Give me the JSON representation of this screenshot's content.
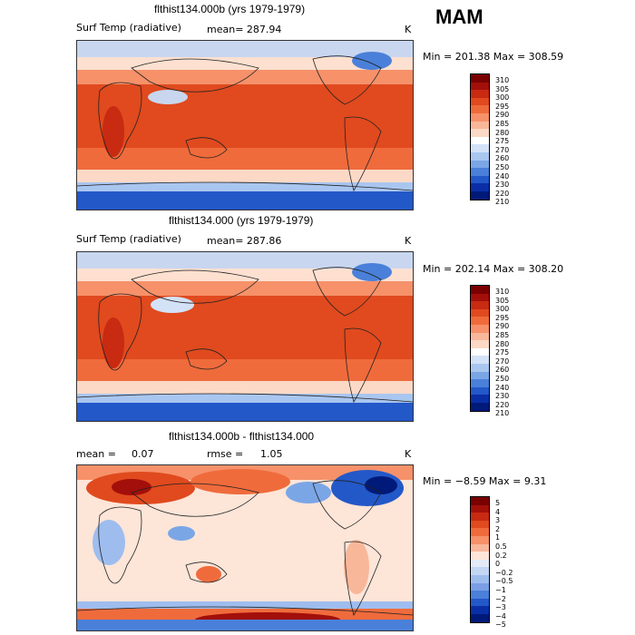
{
  "season": "MAM",
  "panels": [
    {
      "title": "flthist134.000b (yrs 1979-1979)",
      "left_label": "Surf Temp (radiative)",
      "mean_label": "mean= 287.94",
      "units": "K",
      "minmax": "Min = 201.38 Max = 308.59",
      "colorbar": {
        "labels": [
          "310",
          "305",
          "300",
          "295",
          "290",
          "285",
          "280",
          "275",
          "270",
          "260",
          "250",
          "240",
          "230",
          "220",
          "210"
        ],
        "colors": [
          "#7a0000",
          "#a30f0a",
          "#c82a12",
          "#e04a1e",
          "#ef6b3c",
          "#f6916a",
          "#f9b79a",
          "#fcd9c6",
          "#ffffff",
          "#d3e2f7",
          "#a9c6f0",
          "#7ba6e6",
          "#4a80d9",
          "#2358c8",
          "#0a2ea6",
          "#001a7a"
        ]
      }
    },
    {
      "title": "flthist134.000 (yrs 1979-1979)",
      "left_label": "Surf Temp (radiative)",
      "mean_label": "mean= 287.86",
      "units": "K",
      "minmax": "Min = 202.14 Max = 308.20",
      "colorbar": {
        "labels": [
          "310",
          "305",
          "300",
          "295",
          "290",
          "285",
          "280",
          "275",
          "270",
          "260",
          "250",
          "240",
          "230",
          "220",
          "210"
        ],
        "colors": [
          "#7a0000",
          "#a30f0a",
          "#c82a12",
          "#e04a1e",
          "#ef6b3c",
          "#f6916a",
          "#f9b79a",
          "#fcd9c6",
          "#ffffff",
          "#d3e2f7",
          "#a9c6f0",
          "#7ba6e6",
          "#4a80d9",
          "#2358c8",
          "#0a2ea6",
          "#001a7a"
        ]
      }
    },
    {
      "title": "flthist134.000b - flthist134.000",
      "mean_key": "mean =",
      "mean_val": "0.07",
      "rmse_key": "rmse =",
      "rmse_val": "1.05",
      "units": "K",
      "minmax": "Min = −8.59 Max =   9.31",
      "colorbar": {
        "labels": [
          "5",
          "4",
          "3",
          "2",
          "1",
          "0.5",
          "0.2",
          "0",
          "−0.2",
          "−0.5",
          "−1",
          "−2",
          "−3",
          "−4",
          "−5"
        ],
        "colors": [
          "#7a0000",
          "#a30f0a",
          "#c82a12",
          "#e04a1e",
          "#ef6b3c",
          "#f6916a",
          "#f9b79a",
          "#fde5d8",
          "#e3ebf8",
          "#c3d6f3",
          "#9ebdee",
          "#7a9fe6",
          "#4a80d9",
          "#2358c8",
          "#0a2ea6",
          "#001a7a"
        ]
      }
    }
  ]
}
